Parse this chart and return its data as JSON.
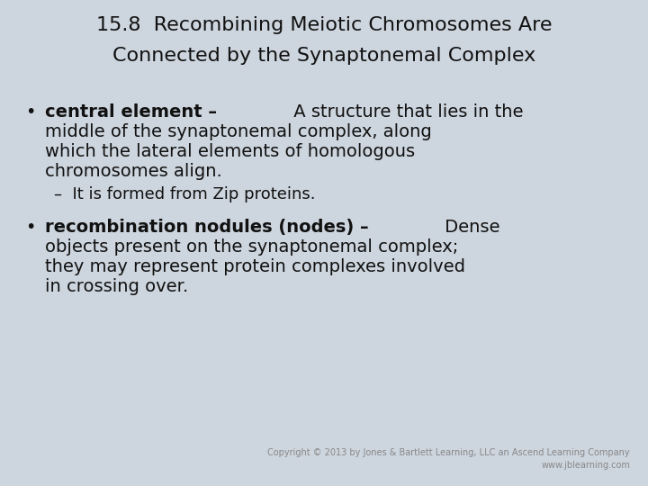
{
  "background_color": "#cdd5de",
  "title_line1": "15.8  Recombining Meiotic Chromosomes Are",
  "title_line2": "Connected by the Synaptonemal Complex",
  "title_fontsize": 16,
  "title_color": "#111111",
  "body_fontsize": 14,
  "sub_fontsize": 13,
  "body_color": "#111111",
  "copyright_text": "Copyright © 2013 by Jones & Bartlett Learning, LLC an Ascend Learning Company\nwww.jblearning.com",
  "copyright_fontsize": 7,
  "copyright_color": "#888888",
  "bullet_symbol": "•"
}
